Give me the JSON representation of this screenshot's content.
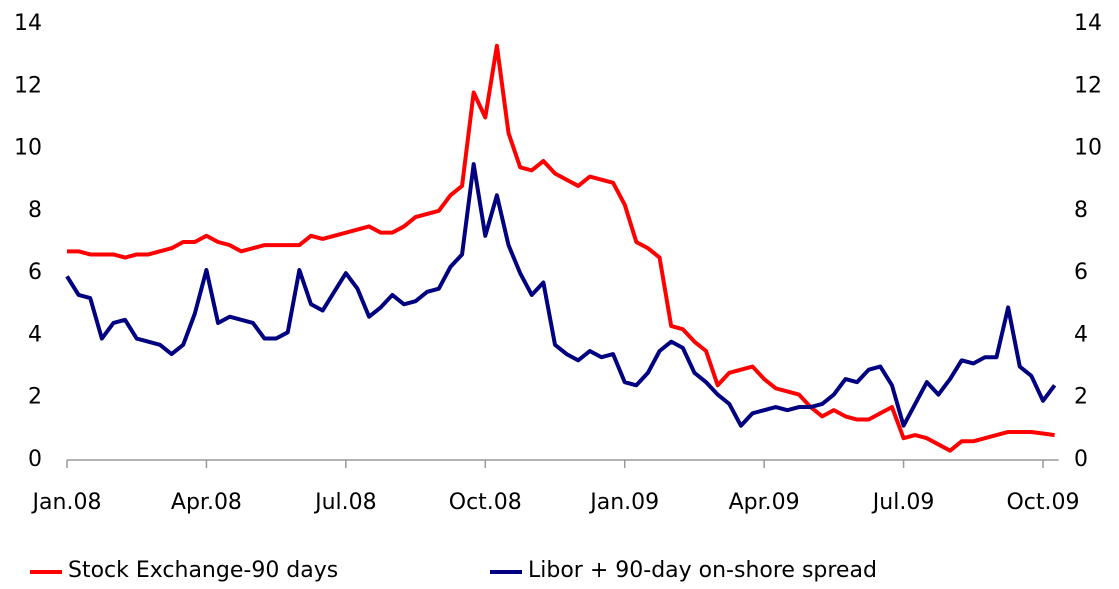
{
  "chart_data": {
    "type": "line",
    "categories": [
      "Jan.08",
      null,
      null,
      null,
      null,
      null,
      null,
      null,
      null,
      null,
      null,
      null,
      "Apr.08",
      null,
      null,
      null,
      null,
      null,
      null,
      null,
      null,
      null,
      null,
      null,
      "Jul.08",
      null,
      null,
      null,
      null,
      null,
      null,
      null,
      null,
      null,
      null,
      null,
      "Oct.08",
      null,
      null,
      null,
      null,
      null,
      null,
      null,
      null,
      null,
      null,
      null,
      "Jan.09",
      null,
      null,
      null,
      null,
      null,
      null,
      null,
      null,
      null,
      null,
      null,
      "Apr.09",
      null,
      null,
      null,
      null,
      null,
      null,
      null,
      null,
      null,
      null,
      null,
      "Jul.09",
      null,
      null,
      null,
      null,
      null,
      null,
      null,
      null,
      null,
      null,
      null,
      "Oct.09",
      null
    ],
    "series": [
      {
        "name": "Stock Exchange-90 days",
        "color": "#ff0000",
        "values": [
          6.7,
          6.7,
          6.6,
          6.6,
          6.6,
          6.5,
          6.6,
          6.6,
          6.7,
          6.8,
          7.0,
          7.0,
          7.2,
          7.0,
          6.9,
          6.7,
          6.8,
          6.9,
          6.9,
          6.9,
          6.9,
          7.2,
          7.1,
          7.2,
          7.3,
          7.4,
          7.5,
          7.3,
          7.3,
          7.5,
          7.8,
          7.9,
          8.0,
          8.5,
          8.8,
          11.8,
          11.0,
          13.3,
          10.5,
          9.4,
          9.3,
          9.6,
          9.2,
          9.0,
          8.8,
          9.1,
          9.0,
          8.9,
          8.2,
          7.0,
          6.8,
          6.5,
          4.3,
          4.2,
          3.8,
          3.5,
          2.4,
          2.8,
          2.9,
          3.0,
          2.6,
          2.3,
          2.2,
          2.1,
          1.7,
          1.4,
          1.6,
          1.4,
          1.3,
          1.3,
          1.5,
          1.7,
          0.7,
          0.8,
          0.7,
          0.5,
          0.3,
          0.6,
          0.6,
          0.7,
          0.8,
          0.9,
          0.9,
          0.9,
          0.85,
          0.8
        ]
      },
      {
        "name": "Libor + 90-day on-shore spread",
        "color": "#000080",
        "values": [
          5.9,
          5.3,
          5.2,
          3.9,
          4.4,
          4.5,
          3.9,
          3.8,
          3.7,
          3.4,
          3.7,
          4.7,
          6.1,
          4.4,
          4.6,
          4.5,
          4.4,
          3.9,
          3.9,
          4.1,
          6.1,
          5.0,
          4.8,
          5.4,
          6.0,
          5.5,
          4.6,
          4.9,
          5.3,
          5.0,
          5.1,
          5.4,
          5.5,
          6.2,
          6.6,
          9.5,
          7.2,
          8.5,
          6.9,
          6.0,
          5.3,
          5.7,
          3.7,
          3.4,
          3.2,
          3.5,
          3.3,
          3.4,
          2.5,
          2.4,
          2.8,
          3.5,
          3.8,
          3.6,
          2.8,
          2.5,
          2.1,
          1.8,
          1.1,
          1.5,
          1.6,
          1.7,
          1.6,
          1.7,
          1.7,
          1.8,
          2.1,
          2.6,
          2.5,
          2.9,
          3.0,
          2.4,
          1.1,
          1.8,
          2.5,
          2.1,
          2.6,
          3.2,
          3.1,
          3.3,
          3.3,
          4.9,
          3.0,
          2.7,
          1.9,
          2.4
        ]
      }
    ],
    "ylim": [
      0,
      14
    ],
    "yticks": [
      0,
      2,
      4,
      6,
      8,
      10,
      12,
      14
    ],
    "y2lim": [
      0,
      14
    ],
    "y2ticks": [
      0,
      2,
      4,
      6,
      8,
      10,
      12,
      14
    ],
    "grid": false,
    "legend": "bottom"
  }
}
